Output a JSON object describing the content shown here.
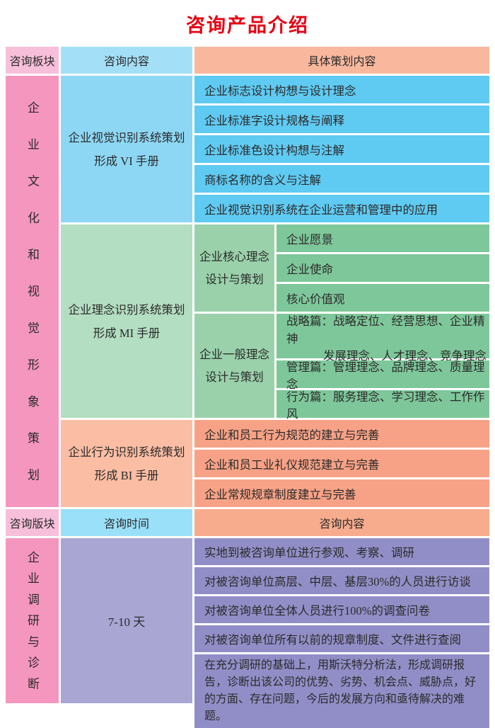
{
  "title": "咨询产品介绍",
  "colors": {
    "title_red": "#e60012",
    "header_pink": "#f7bfd9",
    "header_blue": "#a3e0f7",
    "header_salmon": "#f9b89e",
    "side_pink": "#f596be",
    "vi_label_blue": "#8dd7f4",
    "vi_item_blue": "#5fcaf2",
    "mi_label_green": "#b3dec1",
    "mi_group_green": "#9ad1ab",
    "mi_item_green": "#7ec79a",
    "bi_label_orange": "#fbbda3",
    "bi_item_orange": "#f7a286",
    "time_purple": "#a9a6d4",
    "item_purple": "#918ec7"
  },
  "section1": {
    "header": {
      "col1": "咨询板块",
      "col2": "咨询内容",
      "col3": "具体策划内容"
    },
    "side_label": "企业文化和视觉形象策划",
    "blocks": [
      {
        "label_line1": "企业视觉识别系统策划",
        "label_line2": "形成 VI 手册",
        "items": [
          "企业标志设计构想与设计理念",
          "企业标准字设计规格与阐释",
          "企业标准色设计构想与注解",
          "商标名称的含义与注解",
          "企业视觉识别系统在企业运营和管理中的应用"
        ]
      },
      {
        "label_line1": "企业理念识别系统策划",
        "label_line2": "形成 MI 手册",
        "groups": [
          {
            "label_line1": "企业核心理念",
            "label_line2": "设计与策划",
            "items": [
              "企业愿景",
              "企业使命",
              "核心价值观"
            ]
          },
          {
            "label_line1": "企业一般理念",
            "label_line2": "设计与策划",
            "items": [
              {
                "line1": "战略篇：战略定位、经营思想、企业精神",
                "line2": "发展理念、人才理念、竞争理念"
              },
              "管理篇：管理理念、品牌理念、质量理念",
              "行为篇：服务理念、学习理念、工作作风"
            ]
          }
        ]
      },
      {
        "label_line1": "企业行为识别系统策划",
        "label_line2": "形成 BI 手册",
        "items": [
          "企业和员工行为规范的建立与完善",
          "企业和员工业礼仪规范建立与完善",
          "企业常规规章制度建立与完善"
        ]
      }
    ]
  },
  "section2": {
    "header": {
      "col1": "咨询版块",
      "col2": "咨询时间",
      "col3": "咨询内容"
    },
    "side_label": "企业调研与诊断",
    "duration": "7-10 天",
    "items": [
      "实地到被咨询单位进行参观、考察、调研",
      "对被咨询单位高层、中层、基层30%的人员进行访谈",
      "对被咨询单位全体人员进行100%的调查问卷",
      "对被咨询单位所有以前的规章制度、文件进行查阅",
      "在充分调研的基础上，用斯沃特分析法，形成调研报告，诊断出该公司的优势、劣势、机会点、威胁点，好的方面、存在问题，今后的发展方向和亟待解决的难题。"
    ]
  }
}
